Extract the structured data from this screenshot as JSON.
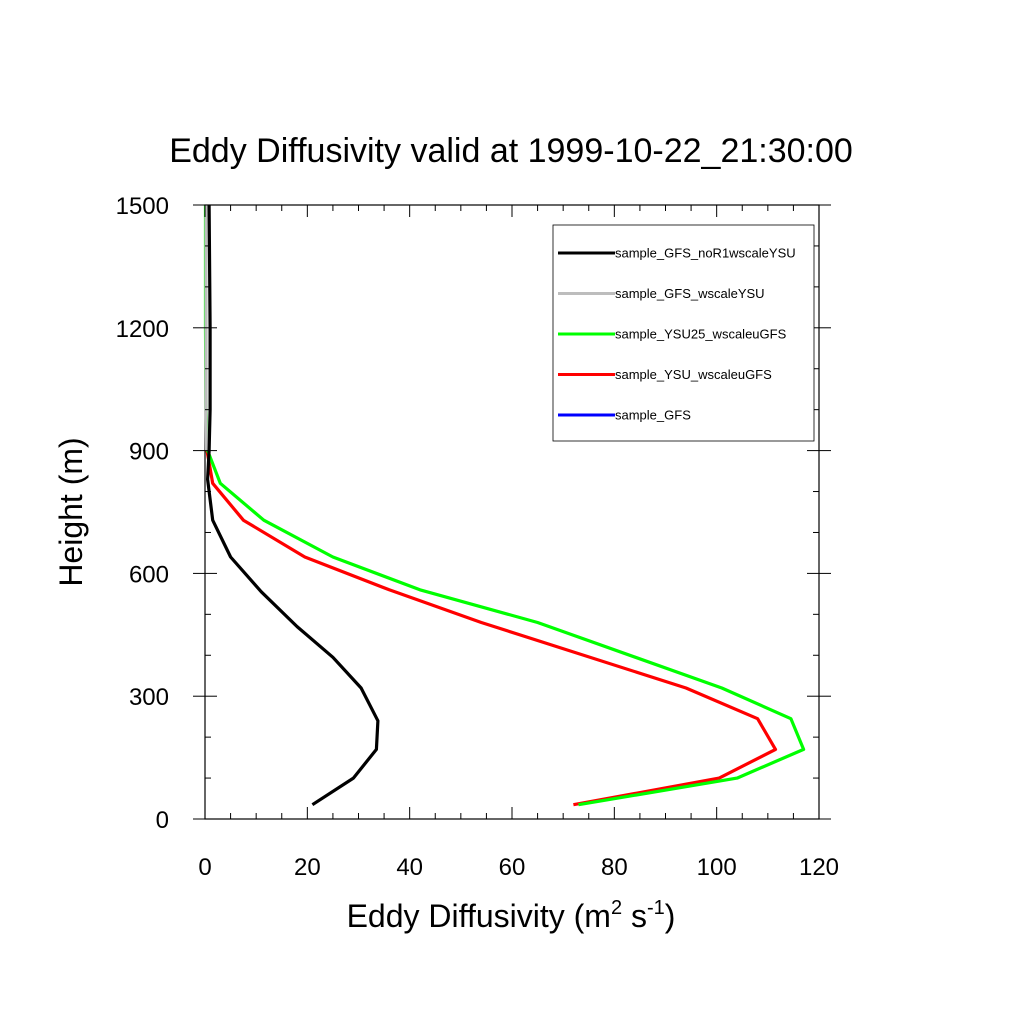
{
  "chart_data": {
    "type": "line",
    "title": "Eddy Diffusivity valid at 1999-10-22_21:30:00",
    "xlabel": {
      "base": "Eddy Diffusivity (m",
      "sup1": "2",
      "mid": " s",
      "sup2": "-1",
      "end": ")"
    },
    "ylabel": "Height (m)",
    "xlim": [
      0,
      120
    ],
    "ylim": [
      0,
      1500
    ],
    "xticks": [
      0,
      20,
      40,
      60,
      80,
      100,
      120
    ],
    "yticks": [
      0,
      300,
      600,
      900,
      1200,
      1500
    ],
    "grid": false,
    "legend_position": "top-right",
    "series": [
      {
        "name": "sample_GFS_noR1wscaleYSU",
        "color": "#000000",
        "points": [
          [
            21,
            35
          ],
          [
            29,
            100
          ],
          [
            33.5,
            170
          ],
          [
            33.8,
            240
          ],
          [
            30.5,
            320
          ],
          [
            25,
            395
          ],
          [
            18,
            470
          ],
          [
            11,
            555
          ],
          [
            5,
            640
          ],
          [
            1.5,
            730
          ],
          [
            0.5,
            830
          ],
          [
            0.8,
            900
          ],
          [
            1.0,
            1000
          ],
          [
            1.0,
            1200
          ],
          [
            0.8,
            1500
          ]
        ]
      },
      {
        "name": "sample_GFS_wscaleYSU",
        "color": "#bdbdbd",
        "points": [
          [
            0.3,
            900
          ],
          [
            0.2,
            1000
          ],
          [
            0.2,
            1200
          ],
          [
            0.2,
            1500
          ]
        ]
      },
      {
        "name": "sample_YSU25_wscaleuGFS",
        "color": "#00ff00",
        "points": [
          [
            73,
            35
          ],
          [
            104,
            100
          ],
          [
            117,
            170
          ],
          [
            114.5,
            245
          ],
          [
            101,
            320
          ],
          [
            65,
            480
          ],
          [
            42,
            560
          ],
          [
            25,
            640
          ],
          [
            11.5,
            730
          ],
          [
            3,
            820
          ],
          [
            0.5,
            900
          ],
          [
            0.2,
            1000
          ],
          [
            0.1,
            1200
          ],
          [
            0.1,
            1500
          ]
        ]
      },
      {
        "name": "sample_YSU_wscaleuGFS",
        "color": "#ff0000",
        "points": [
          [
            72,
            35
          ],
          [
            100.5,
            100
          ],
          [
            111.5,
            170
          ],
          [
            108,
            245
          ],
          [
            94,
            320
          ],
          [
            54,
            480
          ],
          [
            36,
            560
          ],
          [
            19.5,
            640
          ],
          [
            7.5,
            730
          ],
          [
            1.5,
            820
          ],
          [
            0.4,
            900
          ]
        ]
      },
      {
        "name": "sample_GFS",
        "color": "#0000ff",
        "points": []
      }
    ]
  }
}
